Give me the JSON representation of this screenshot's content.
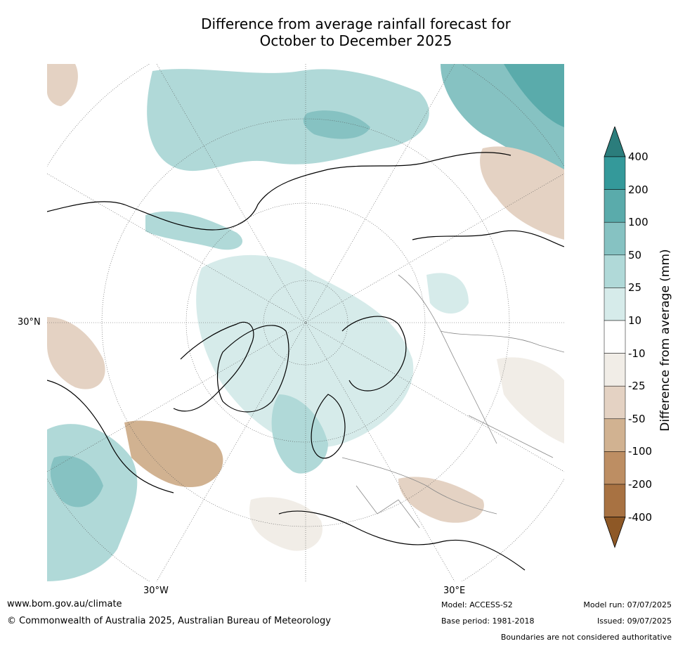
{
  "title_line1": "Difference from average rainfall forecast for",
  "title_line2": "October to December 2025",
  "map": {
    "lat_label": "30°N",
    "lon_labels": [
      "30°W",
      "30°E"
    ]
  },
  "colorbar": {
    "label": "Difference from average (mm)",
    "ticks": [
      "400",
      "200",
      "100",
      "50",
      "25",
      "10",
      "-10",
      "-25",
      "-50",
      "-100",
      "-200",
      "-400"
    ],
    "colors": [
      "#2b7d7c",
      "#34999a",
      "#5aabab",
      "#86c2c2",
      "#b0d9d8",
      "#d6ebea",
      "#ffffff",
      "#f1ede7",
      "#e4d2c3",
      "#d1b291",
      "#bd8e63",
      "#a87242",
      "#8e5826"
    ]
  },
  "footer": {
    "url": "www.bom.gov.au/climate",
    "copyright": "© Commonwealth of Australia 2025, Australian Bureau of Meteorology",
    "model": "Model: ACCESS-S2",
    "base_period": "Base period: 1981-2018",
    "model_run": "Model run: 07/07/2025",
    "issued": "Issued: 09/07/2025",
    "disclaimer": "Boundaries are not considered authoritative"
  }
}
